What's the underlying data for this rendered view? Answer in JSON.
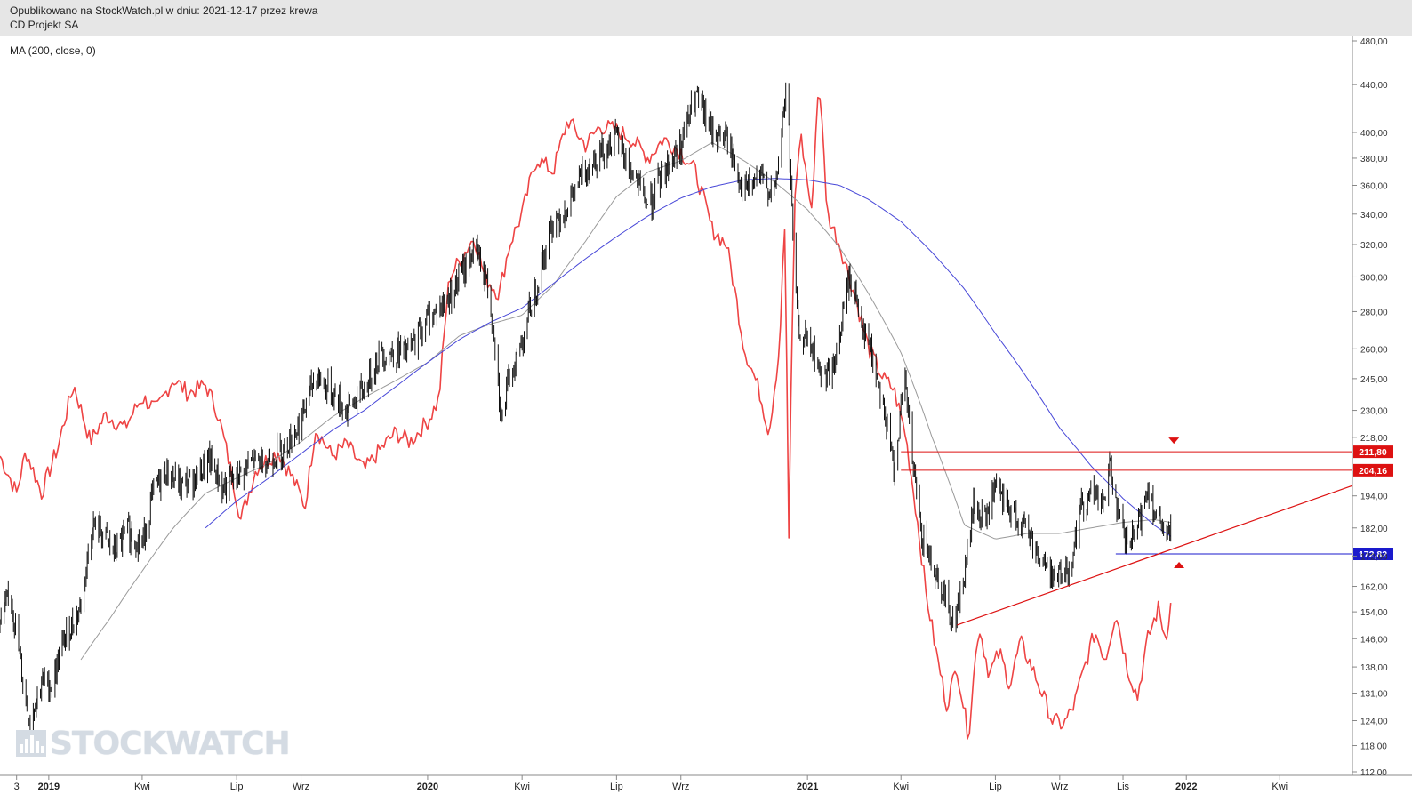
{
  "header": {
    "published": "Opublikowano na StockWatch.pl w dniu: 2021-12-17 przez krewa",
    "instrument": "CD Projekt SA"
  },
  "indicator_label": "MA (200, close, 0)",
  "watermark": "STOCKWATCH",
  "colors": {
    "candle": "#111111",
    "relative_line": "#ee4444",
    "ma_long": "#4848d8",
    "ma_short": "#9a9a9a",
    "level_red": "#dd1111",
    "level_blue": "#1a1acc",
    "header_bg": "#e6e6e6"
  },
  "chart_data": {
    "type": "line",
    "y_axis": {
      "range": [
        112,
        480
      ],
      "scale": "log",
      "ticks": [
        {
          "v": 480,
          "label": "480,00"
        },
        {
          "v": 440,
          "label": "440,00"
        },
        {
          "v": 400,
          "label": "400,00"
        },
        {
          "v": 380,
          "label": "380,00"
        },
        {
          "v": 360,
          "label": "360,00"
        },
        {
          "v": 340,
          "label": "340,00"
        },
        {
          "v": 320,
          "label": "320,00"
        },
        {
          "v": 300,
          "label": "300,00"
        },
        {
          "v": 280,
          "label": "280,00"
        },
        {
          "v": 260,
          "label": "260,00"
        },
        {
          "v": 245,
          "label": "245,00"
        },
        {
          "v": 230,
          "label": "230,00"
        },
        {
          "v": 218,
          "label": "218,00"
        },
        {
          "v": 194,
          "label": "194,00"
        },
        {
          "v": 182,
          "label": "182,00"
        },
        {
          "v": 172,
          "label": "172,00"
        },
        {
          "v": 162,
          "label": "162,00"
        },
        {
          "v": 154,
          "label": "154,00"
        },
        {
          "v": 146,
          "label": "146,00"
        },
        {
          "v": 138,
          "label": "138,00"
        },
        {
          "v": 131,
          "label": "131,00"
        },
        {
          "v": 124,
          "label": "124,00"
        },
        {
          "v": 118,
          "label": "118,00"
        },
        {
          "v": 112,
          "label": "112,00"
        }
      ]
    },
    "x_axis": {
      "range": [
        "2018-11-15",
        "2022-06-10"
      ],
      "ticks": [
        {
          "date": "2018-12-01",
          "label": "3"
        },
        {
          "date": "2019-01-01",
          "label": "2019"
        },
        {
          "date": "2019-04-01",
          "label": "Kwi"
        },
        {
          "date": "2019-07-01",
          "label": "Lip"
        },
        {
          "date": "2019-09-01",
          "label": "Wrz"
        },
        {
          "date": "2020-01-01",
          "label": "2020"
        },
        {
          "date": "2020-04-01",
          "label": "Kwi"
        },
        {
          "date": "2020-07-01",
          "label": "Lip"
        },
        {
          "date": "2020-09-01",
          "label": "Wrz"
        },
        {
          "date": "2021-01-01",
          "label": "2021"
        },
        {
          "date": "2021-04-01",
          "label": "Kwi"
        },
        {
          "date": "2021-07-01",
          "label": "Lip"
        },
        {
          "date": "2021-09-01",
          "label": "Wrz"
        },
        {
          "date": "2021-11-01",
          "label": "Lis"
        },
        {
          "date": "2022-01-01",
          "label": "2022"
        },
        {
          "date": "2022-04-01",
          "label": "Kwi"
        }
      ]
    },
    "price_close": [
      [
        "2018-11-15",
        150
      ],
      [
        "2018-11-25",
        160
      ],
      [
        "2018-12-05",
        138
      ],
      [
        "2018-12-13",
        124
      ],
      [
        "2018-12-25",
        134
      ],
      [
        "2019-01-04",
        133
      ],
      [
        "2019-01-15",
        145
      ],
      [
        "2019-02-01",
        156
      ],
      [
        "2019-02-12",
        183
      ],
      [
        "2019-02-22",
        180
      ],
      [
        "2019-03-05",
        173
      ],
      [
        "2019-03-18",
        181
      ],
      [
        "2019-04-01",
        176
      ],
      [
        "2019-04-12",
        196
      ],
      [
        "2019-04-25",
        204
      ],
      [
        "2019-05-08",
        198
      ],
      [
        "2019-05-22",
        201
      ],
      [
        "2019-06-05",
        208
      ],
      [
        "2019-06-18",
        197
      ],
      [
        "2019-07-01",
        201
      ],
      [
        "2019-07-15",
        207
      ],
      [
        "2019-08-01",
        209
      ],
      [
        "2019-08-15",
        213
      ],
      [
        "2019-09-01",
        225
      ],
      [
        "2019-09-15",
        247
      ],
      [
        "2019-10-01",
        238
      ],
      [
        "2019-10-15",
        230
      ],
      [
        "2019-11-01",
        240
      ],
      [
        "2019-11-15",
        257
      ],
      [
        "2019-12-01",
        258
      ],
      [
        "2019-12-15",
        259
      ],
      [
        "2020-01-01",
        277
      ],
      [
        "2020-01-15",
        283
      ],
      [
        "2020-02-01",
        299
      ],
      [
        "2020-02-15",
        318
      ],
      [
        "2020-02-26",
        300
      ],
      [
        "2020-03-05",
        270
      ],
      [
        "2020-03-12",
        225
      ],
      [
        "2020-03-20",
        245
      ],
      [
        "2020-04-01",
        265
      ],
      [
        "2020-04-15",
        295
      ],
      [
        "2020-05-01",
        335
      ],
      [
        "2020-05-15",
        345
      ],
      [
        "2020-06-01",
        372
      ],
      [
        "2020-06-15",
        385
      ],
      [
        "2020-07-01",
        395
      ],
      [
        "2020-07-15",
        370
      ],
      [
        "2020-08-01",
        345
      ],
      [
        "2020-08-15",
        370
      ],
      [
        "2020-09-01",
        390
      ],
      [
        "2020-09-15",
        430
      ],
      [
        "2020-10-01",
        400
      ],
      [
        "2020-10-15",
        395
      ],
      [
        "2020-11-01",
        355
      ],
      [
        "2020-11-15",
        365
      ],
      [
        "2020-12-01",
        355
      ],
      [
        "2020-12-08",
        410
      ],
      [
        "2020-12-12",
        440
      ],
      [
        "2020-12-18",
        320
      ],
      [
        "2020-12-23",
        270
      ],
      [
        "2021-01-05",
        260
      ],
      [
        "2021-01-15",
        245
      ],
      [
        "2021-01-28",
        252
      ],
      [
        "2021-02-10",
        300
      ],
      [
        "2021-02-25",
        270
      ],
      [
        "2021-03-10",
        245
      ],
      [
        "2021-03-25",
        205
      ],
      [
        "2021-04-05",
        243
      ],
      [
        "2021-04-12",
        208
      ],
      [
        "2021-04-20",
        180
      ],
      [
        "2021-05-01",
        170
      ],
      [
        "2021-05-12",
        160
      ],
      [
        "2021-05-22",
        150
      ],
      [
        "2021-06-01",
        165
      ],
      [
        "2021-06-10",
        190
      ],
      [
        "2021-06-20",
        184
      ],
      [
        "2021-07-01",
        196
      ],
      [
        "2021-07-15",
        188
      ],
      [
        "2021-08-01",
        181
      ],
      [
        "2021-08-15",
        170
      ],
      [
        "2021-08-28",
        165
      ],
      [
        "2021-09-10",
        168
      ],
      [
        "2021-09-22",
        190
      ],
      [
        "2021-10-01",
        196
      ],
      [
        "2021-10-12",
        190
      ],
      [
        "2021-10-20",
        206
      ],
      [
        "2021-10-28",
        185
      ],
      [
        "2021-11-05",
        175
      ],
      [
        "2021-11-15",
        181
      ],
      [
        "2021-11-25",
        198
      ],
      [
        "2021-12-03",
        186
      ],
      [
        "2021-12-13",
        176
      ],
      [
        "2021-12-17",
        186
      ]
    ],
    "relative_series": [
      [
        "2018-11-15",
        210
      ],
      [
        "2018-12-01",
        195
      ],
      [
        "2018-12-10",
        212
      ],
      [
        "2018-12-25",
        195
      ],
      [
        "2019-01-10",
        214
      ],
      [
        "2019-01-25",
        242
      ],
      [
        "2019-02-10",
        216
      ],
      [
        "2019-02-25",
        228
      ],
      [
        "2019-03-15",
        222
      ],
      [
        "2019-04-01",
        236
      ],
      [
        "2019-04-15",
        230
      ],
      [
        "2019-05-01",
        245
      ],
      [
        "2019-05-15",
        238
      ],
      [
        "2019-06-01",
        242
      ],
      [
        "2019-06-12",
        230
      ],
      [
        "2019-06-25",
        205
      ],
      [
        "2019-07-05",
        185
      ],
      [
        "2019-07-20",
        205
      ],
      [
        "2019-08-10",
        212
      ],
      [
        "2019-08-25",
        200
      ],
      [
        "2019-09-05",
        190
      ],
      [
        "2019-09-15",
        222
      ],
      [
        "2019-10-01",
        210
      ],
      [
        "2019-10-15",
        215
      ],
      [
        "2019-11-01",
        204
      ],
      [
        "2019-11-15",
        212
      ],
      [
        "2019-12-01",
        220
      ],
      [
        "2019-12-15",
        216
      ],
      [
        "2020-01-01",
        225
      ],
      [
        "2020-01-12",
        235
      ],
      [
        "2020-01-22",
        300
      ],
      [
        "2020-02-01",
        310
      ],
      [
        "2020-02-15",
        325
      ],
      [
        "2020-02-25",
        300
      ],
      [
        "2020-03-10",
        290
      ],
      [
        "2020-03-20",
        320
      ],
      [
        "2020-04-01",
        340
      ],
      [
        "2020-04-15",
        380
      ],
      [
        "2020-05-01",
        370
      ],
      [
        "2020-05-15",
        410
      ],
      [
        "2020-06-01",
        390
      ],
      [
        "2020-06-15",
        405
      ],
      [
        "2020-07-01",
        402
      ],
      [
        "2020-07-15",
        395
      ],
      [
        "2020-08-01",
        380
      ],
      [
        "2020-08-15",
        395
      ],
      [
        "2020-09-01",
        385
      ],
      [
        "2020-09-15",
        370
      ],
      [
        "2020-10-01",
        330
      ],
      [
        "2020-10-15",
        320
      ],
      [
        "2020-11-01",
        260
      ],
      [
        "2020-11-15",
        240
      ],
      [
        "2020-11-25",
        220
      ],
      [
        "2020-12-05",
        260
      ],
      [
        "2020-12-10",
        330
      ],
      [
        "2020-12-14",
        176
      ],
      [
        "2020-12-20",
        350
      ],
      [
        "2020-12-25",
        400
      ],
      [
        "2021-01-05",
        340
      ],
      [
        "2021-01-12",
        445
      ],
      [
        "2021-01-20",
        340
      ],
      [
        "2021-02-01",
        320
      ],
      [
        "2021-02-15",
        290
      ],
      [
        "2021-03-01",
        260
      ],
      [
        "2021-03-15",
        245
      ],
      [
        "2021-03-25",
        240
      ],
      [
        "2021-04-05",
        220
      ],
      [
        "2021-04-15",
        190
      ],
      [
        "2021-04-25",
        160
      ],
      [
        "2021-05-05",
        142
      ],
      [
        "2021-05-15",
        128
      ],
      [
        "2021-05-25",
        138
      ],
      [
        "2021-06-05",
        120
      ],
      [
        "2021-06-15",
        150
      ],
      [
        "2021-06-25",
        136
      ],
      [
        "2021-07-05",
        142
      ],
      [
        "2021-07-15",
        133
      ],
      [
        "2021-07-25",
        145
      ],
      [
        "2021-08-05",
        138
      ],
      [
        "2021-08-15",
        131
      ],
      [
        "2021-08-25",
        124
      ],
      [
        "2021-09-05",
        123
      ],
      [
        "2021-09-15",
        128
      ],
      [
        "2021-09-25",
        138
      ],
      [
        "2021-10-05",
        148
      ],
      [
        "2021-10-15",
        140
      ],
      [
        "2021-10-25",
        154
      ],
      [
        "2021-11-05",
        138
      ],
      [
        "2021-11-15",
        130
      ],
      [
        "2021-11-25",
        146
      ],
      [
        "2021-12-05",
        155
      ],
      [
        "2021-12-12",
        146
      ],
      [
        "2021-12-17",
        156
      ]
    ],
    "ma_long": [
      [
        "2019-06-01",
        182
      ],
      [
        "2019-07-01",
        192
      ],
      [
        "2019-08-01",
        201
      ],
      [
        "2019-09-01",
        211
      ],
      [
        "2019-10-01",
        221
      ],
      [
        "2019-11-01",
        230
      ],
      [
        "2019-12-01",
        241
      ],
      [
        "2020-01-01",
        253
      ],
      [
        "2020-02-01",
        265
      ],
      [
        "2020-03-01",
        274
      ],
      [
        "2020-04-01",
        282
      ],
      [
        "2020-05-01",
        296
      ],
      [
        "2020-06-01",
        311
      ],
      [
        "2020-07-01",
        325
      ],
      [
        "2020-08-01",
        339
      ],
      [
        "2020-09-01",
        351
      ],
      [
        "2020-10-01",
        359
      ],
      [
        "2020-11-01",
        364
      ],
      [
        "2020-12-01",
        365
      ],
      [
        "2021-01-01",
        364
      ],
      [
        "2021-02-01",
        360
      ],
      [
        "2021-03-01",
        350
      ],
      [
        "2021-04-01",
        335
      ],
      [
        "2021-05-01",
        315
      ],
      [
        "2021-06-01",
        293
      ],
      [
        "2021-07-01",
        268
      ],
      [
        "2021-08-01",
        245
      ],
      [
        "2021-09-01",
        222
      ],
      [
        "2021-10-01",
        206
      ],
      [
        "2021-11-01",
        193
      ],
      [
        "2021-12-01",
        183
      ],
      [
        "2021-12-17",
        179
      ]
    ],
    "ma_short": [
      [
        "2019-02-01",
        140
      ],
      [
        "2019-03-01",
        152
      ],
      [
        "2019-04-01",
        167
      ],
      [
        "2019-05-01",
        182
      ],
      [
        "2019-06-01",
        195
      ],
      [
        "2019-07-01",
        201
      ],
      [
        "2019-08-01",
        207
      ],
      [
        "2019-09-01",
        216
      ],
      [
        "2019-10-01",
        227
      ],
      [
        "2019-11-01",
        236
      ],
      [
        "2019-12-01",
        244
      ],
      [
        "2020-01-01",
        253
      ],
      [
        "2020-02-01",
        267
      ],
      [
        "2020-03-01",
        273
      ],
      [
        "2020-04-01",
        278
      ],
      [
        "2020-05-01",
        295
      ],
      [
        "2020-06-01",
        322
      ],
      [
        "2020-07-01",
        352
      ],
      [
        "2020-08-01",
        370
      ],
      [
        "2020-09-01",
        378
      ],
      [
        "2020-10-01",
        392
      ],
      [
        "2020-11-01",
        378
      ],
      [
        "2020-12-01",
        362
      ],
      [
        "2021-01-01",
        343
      ],
      [
        "2021-02-01",
        318
      ],
      [
        "2021-03-01",
        290
      ],
      [
        "2021-04-01",
        258
      ],
      [
        "2021-05-01",
        218
      ],
      [
        "2021-06-01",
        183
      ],
      [
        "2021-07-01",
        178
      ],
      [
        "2021-08-01",
        180
      ],
      [
        "2021-09-01",
        180
      ],
      [
        "2021-10-01",
        182
      ],
      [
        "2021-11-01",
        184
      ],
      [
        "2021-12-01",
        185
      ],
      [
        "2021-12-17",
        184
      ]
    ],
    "levels": [
      {
        "value": 211.8,
        "label": "211,80",
        "color": "red",
        "from": "2021-04-01",
        "to": "2022-06-10",
        "marker": "down-triangle"
      },
      {
        "value": 204.16,
        "label": "204,16",
        "color": "red",
        "from": "2021-04-01",
        "to": "2022-06-10"
      },
      {
        "value": 172.82,
        "label": "172,82",
        "color": "blue",
        "from": "2021-10-25",
        "to": "2022-06-10",
        "marker": "up-triangle"
      }
    ],
    "trendline": {
      "from": [
        "2021-05-25",
        150
      ],
      "to": [
        "2022-06-10",
        198
      ],
      "color": "red"
    }
  }
}
